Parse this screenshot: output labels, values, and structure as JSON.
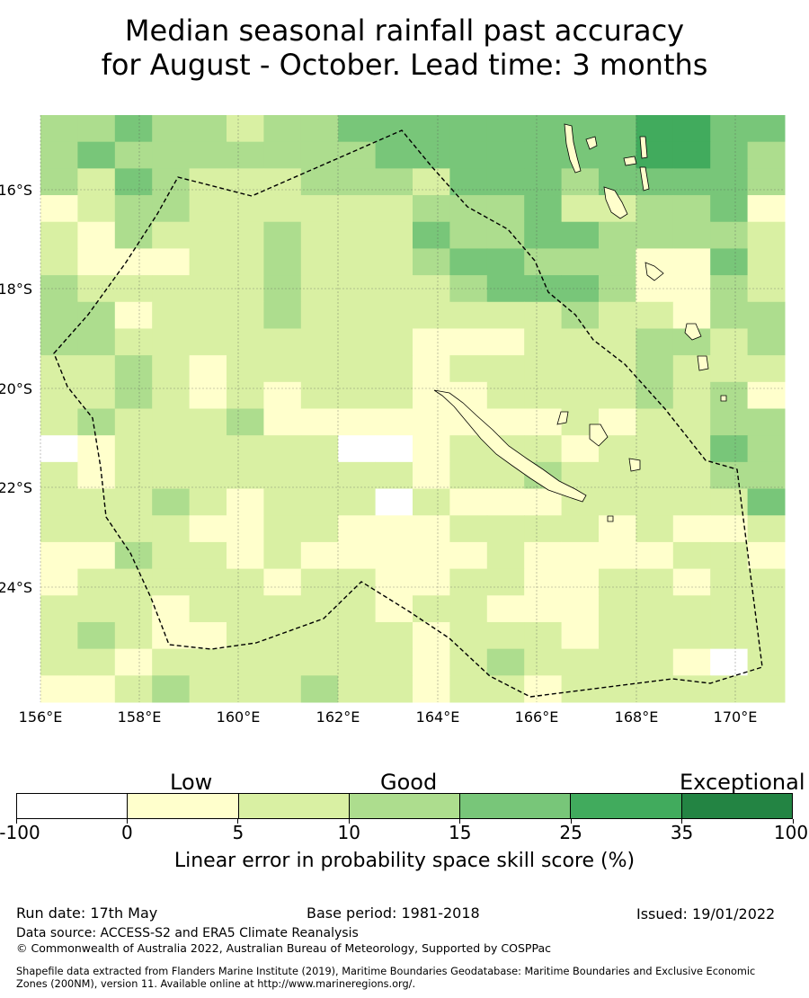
{
  "title_line1": "Median seasonal rainfall past accuracy",
  "title_line2": "for August - October. Lead time: 3 months",
  "map": {
    "x_ticks": [
      "156°E",
      "158°E",
      "160°E",
      "162°E",
      "164°E",
      "166°E",
      "168°E",
      "170°E"
    ],
    "y_ticks": [
      "16°S",
      "18°S",
      "20°S",
      "22°S",
      "24°S"
    ],
    "grid": "on",
    "boundary_style": "dashed",
    "palette": [
      "#ffffff",
      "#ffffcc",
      "#d9f0a3",
      "#addd8e",
      "#78c679",
      "#41ab5d",
      "#238443"
    ],
    "cells": [
      [
        3,
        3,
        4,
        3,
        3,
        2,
        3,
        3,
        4,
        4,
        4,
        4,
        4,
        4,
        4,
        4,
        5,
        5,
        4,
        4
      ],
      [
        3,
        4,
        3,
        3,
        3,
        3,
        3,
        3,
        3,
        4,
        4,
        4,
        4,
        4,
        4,
        4,
        5,
        5,
        4,
        3
      ],
      [
        3,
        2,
        4,
        3,
        2,
        2,
        2,
        3,
        3,
        3,
        2,
        4,
        4,
        4,
        3,
        4,
        4,
        4,
        4,
        3
      ],
      [
        1,
        2,
        3,
        3,
        2,
        2,
        2,
        2,
        2,
        2,
        3,
        3,
        3,
        4,
        2,
        2,
        3,
        3,
        4,
        1
      ],
      [
        2,
        1,
        3,
        2,
        2,
        2,
        3,
        2,
        2,
        2,
        4,
        3,
        3,
        4,
        4,
        3,
        3,
        3,
        3,
        2
      ],
      [
        2,
        1,
        1,
        1,
        2,
        2,
        3,
        2,
        2,
        2,
        3,
        4,
        4,
        3,
        3,
        3,
        1,
        1,
        4,
        2
      ],
      [
        3,
        2,
        2,
        2,
        2,
        2,
        3,
        2,
        2,
        2,
        2,
        3,
        4,
        4,
        4,
        3,
        1,
        1,
        3,
        2
      ],
      [
        3,
        3,
        1,
        2,
        2,
        2,
        3,
        2,
        2,
        2,
        2,
        2,
        2,
        2,
        3,
        2,
        2,
        1,
        3,
        3
      ],
      [
        3,
        3,
        2,
        2,
        2,
        2,
        2,
        2,
        2,
        2,
        1,
        1,
        1,
        2,
        2,
        2,
        3,
        3,
        2,
        3
      ],
      [
        2,
        2,
        3,
        2,
        1,
        2,
        2,
        2,
        2,
        2,
        1,
        2,
        2,
        2,
        2,
        2,
        3,
        2,
        2,
        2
      ],
      [
        2,
        2,
        3,
        2,
        1,
        2,
        1,
        2,
        2,
        2,
        1,
        1,
        2,
        2,
        2,
        2,
        3,
        2,
        3,
        1
      ],
      [
        2,
        3,
        2,
        2,
        2,
        3,
        1,
        1,
        1,
        1,
        1,
        1,
        1,
        1,
        2,
        1,
        2,
        2,
        3,
        3
      ],
      [
        0,
        1,
        2,
        2,
        2,
        2,
        2,
        2,
        0,
        0,
        1,
        2,
        2,
        2,
        1,
        2,
        2,
        2,
        4,
        3
      ],
      [
        2,
        1,
        2,
        2,
        2,
        2,
        2,
        2,
        2,
        2,
        1,
        2,
        2,
        3,
        2,
        2,
        2,
        2,
        3,
        3
      ],
      [
        2,
        2,
        2,
        3,
        2,
        1,
        2,
        2,
        2,
        0,
        2,
        1,
        1,
        1,
        2,
        2,
        2,
        2,
        2,
        4
      ],
      [
        2,
        2,
        2,
        2,
        1,
        1,
        2,
        2,
        1,
        1,
        1,
        2,
        2,
        2,
        2,
        1,
        2,
        1,
        1,
        2
      ],
      [
        1,
        1,
        3,
        2,
        2,
        1,
        2,
        1,
        1,
        1,
        1,
        1,
        2,
        1,
        1,
        1,
        1,
        2,
        2,
        1
      ],
      [
        1,
        2,
        2,
        2,
        2,
        2,
        1,
        2,
        2,
        1,
        1,
        2,
        2,
        1,
        1,
        2,
        2,
        1,
        2,
        2
      ],
      [
        2,
        2,
        2,
        1,
        2,
        2,
        2,
        2,
        2,
        1,
        2,
        2,
        1,
        1,
        1,
        2,
        2,
        2,
        2,
        2
      ],
      [
        2,
        3,
        2,
        1,
        1,
        2,
        2,
        2,
        2,
        2,
        1,
        2,
        2,
        2,
        1,
        2,
        2,
        2,
        2,
        2
      ],
      [
        2,
        2,
        1,
        2,
        2,
        2,
        2,
        2,
        2,
        2,
        1,
        2,
        3,
        2,
        2,
        2,
        2,
        1,
        0,
        2
      ],
      [
        1,
        1,
        2,
        3,
        2,
        2,
        2,
        3,
        2,
        2,
        1,
        2,
        2,
        1,
        2,
        2,
        2,
        2,
        2,
        2
      ]
    ]
  },
  "legend": {
    "categories": [
      "Low",
      "Good",
      "Exceptional"
    ],
    "colors": [
      "#ffffff",
      "#ffffcc",
      "#d9f0a3",
      "#addd8e",
      "#78c679",
      "#41ab5d",
      "#238443"
    ],
    "ticks": [
      "-100",
      "0",
      "5",
      "10",
      "15",
      "25",
      "35",
      "100"
    ],
    "axis_label": "Linear error in probability space skill score (%)"
  },
  "footer": {
    "run_date": "Run date: 17th May",
    "base_period": "Base period: 1981-2018",
    "issued": "Issued: 19/01/2022",
    "data_source": "Data source: ACCESS-S2 and ERA5 Climate Reanalysis",
    "copyright": "© Commonwealth of Australia 2022, Australian Bureau of Meteorology, Supported by COSPPac",
    "shapefile_line1": "Shapefile data extracted from Flanders Marine Institute (2019), Maritime Boundaries Geodatabase: Maritime Boundaries and Exclusive Economic",
    "shapefile_line2": "Zones (200NM), version 11. Available online at http://www.marineregions.org/."
  }
}
